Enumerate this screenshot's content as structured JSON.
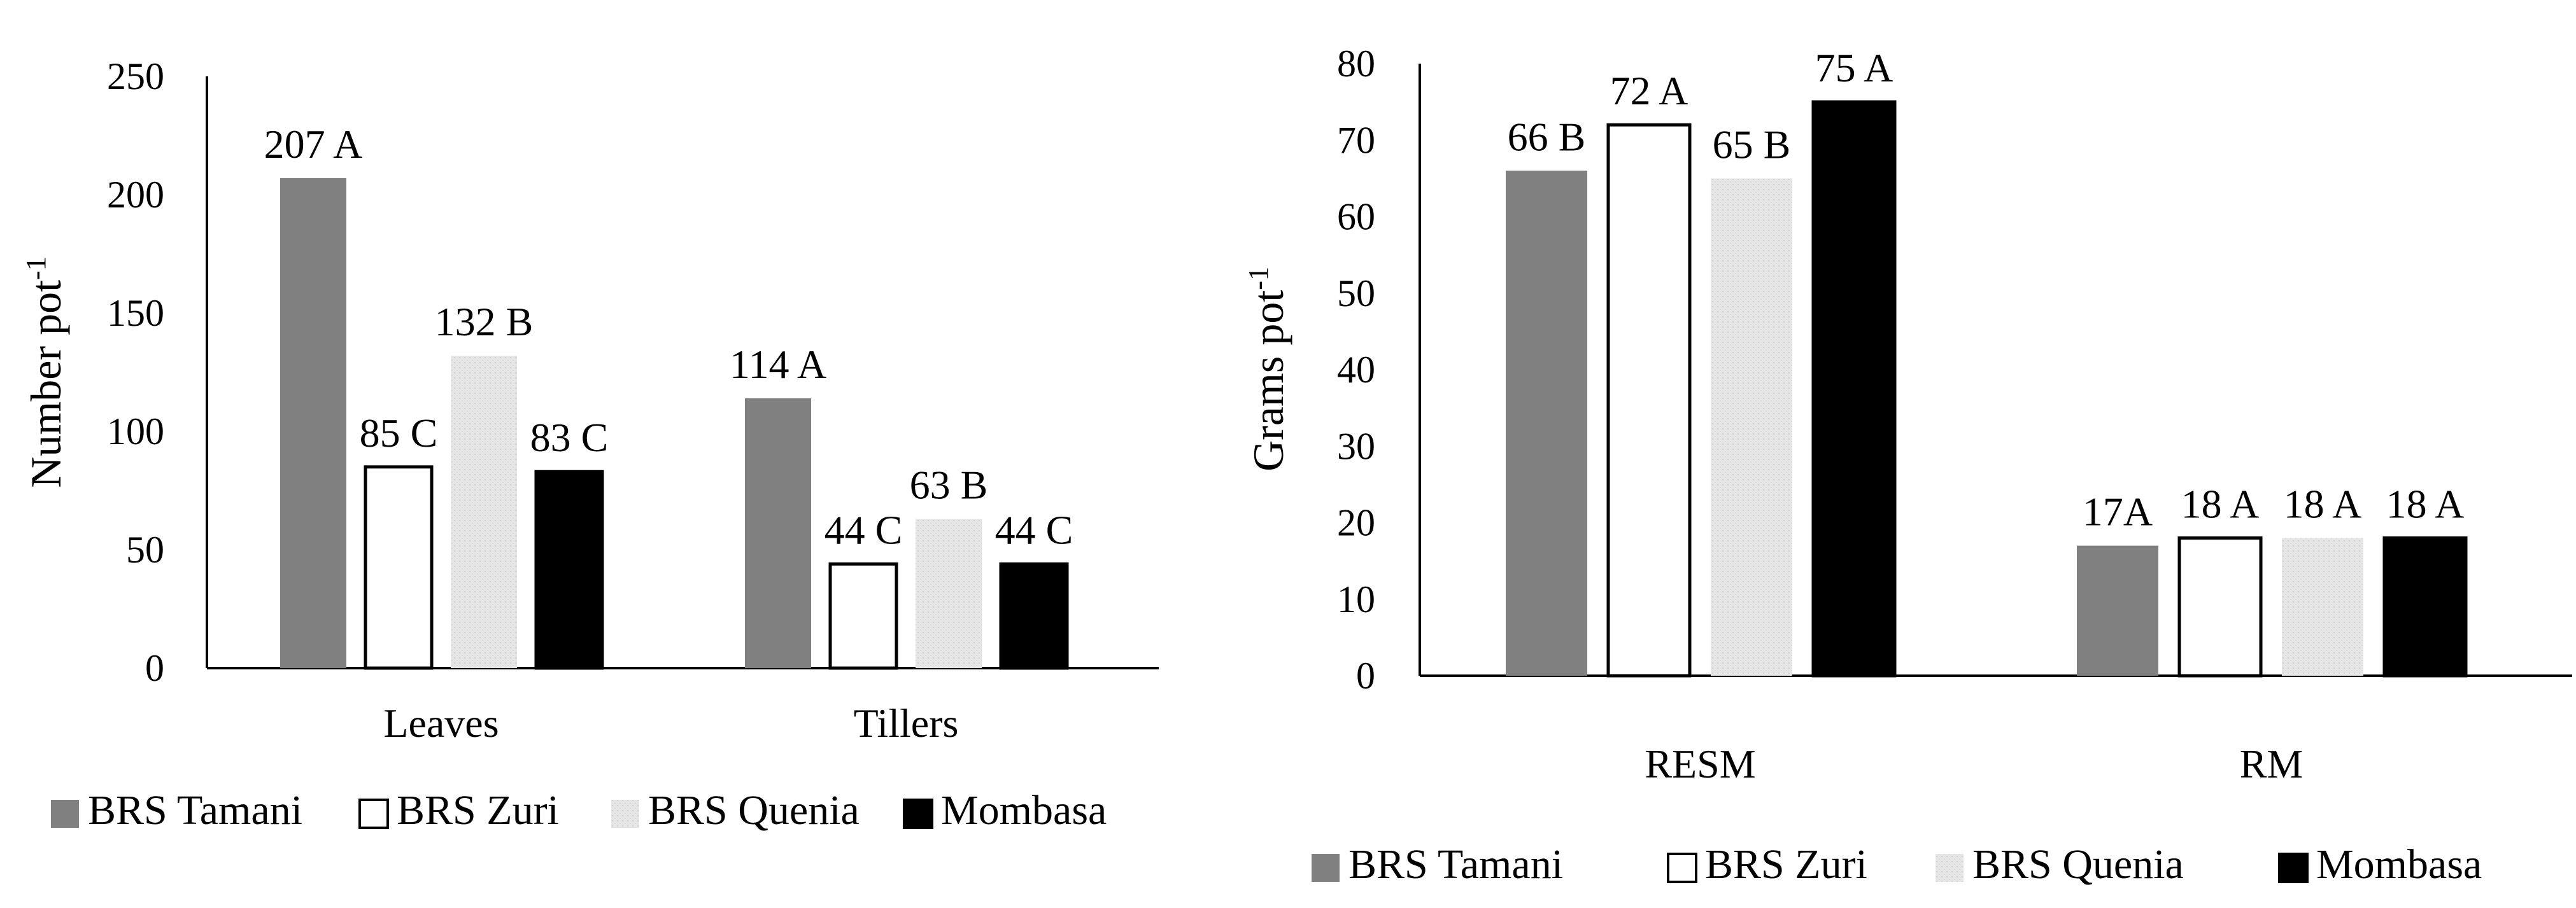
{
  "colors": {
    "BRS Tamani": "#808080",
    "BRS Zuri": "#ffffff",
    "BRS Quenia": "#e3e3e3",
    "Mombasa": "#000000"
  },
  "chart_data": [
    {
      "type": "bar",
      "title": "",
      "xlabel": "",
      "ylabel": "Number pot",
      "ylabel_superscript": "-1",
      "ylim": [
        0,
        250
      ],
      "yticks": [
        "0",
        "50",
        "100",
        "150",
        "200",
        "250"
      ],
      "categories": [
        "Leaves",
        "Tillers"
      ],
      "series": [
        {
          "name": "BRS Tamani",
          "values": [
            207,
            114
          ],
          "labels": [
            "207 A",
            "114 A"
          ]
        },
        {
          "name": "BRS Zuri",
          "values": [
            85,
            44
          ],
          "labels": [
            "85 C",
            "44 C"
          ]
        },
        {
          "name": "BRS Quenia",
          "values": [
            132,
            63
          ],
          "labels": [
            "132 B",
            "63 B"
          ]
        },
        {
          "name": "Mombasa",
          "values": [
            83,
            44
          ],
          "labels": [
            "83 C",
            "44 C"
          ]
        }
      ],
      "legend": [
        "BRS Tamani",
        "BRS Zuri",
        "BRS Quenia",
        "Mombasa"
      ],
      "legend_position": "bottom"
    },
    {
      "type": "bar",
      "title": "",
      "xlabel": "",
      "ylabel": "Grams pot",
      "ylabel_superscript": "-1",
      "ylim": [
        0,
        80
      ],
      "yticks": [
        "0",
        "10",
        "20",
        "30",
        "40",
        "50",
        "60",
        "70",
        "80"
      ],
      "categories": [
        "RESM",
        "RM"
      ],
      "series": [
        {
          "name": "BRS Tamani",
          "values": [
            66,
            17
          ],
          "labels": [
            "66 B",
            "17A"
          ]
        },
        {
          "name": "BRS Zuri",
          "values": [
            72,
            18
          ],
          "labels": [
            "72 A",
            "18 A"
          ]
        },
        {
          "name": "BRS Quenia",
          "values": [
            65,
            18
          ],
          "labels": [
            "65 B",
            "18 A"
          ]
        },
        {
          "name": "Mombasa",
          "values": [
            75,
            18
          ],
          "labels": [
            "75 A",
            "18 A"
          ]
        }
      ],
      "legend": [
        "BRS Tamani",
        "BRS Zuri",
        "BRS Quenia",
        "Mombasa"
      ],
      "legend_position": "bottom"
    }
  ]
}
